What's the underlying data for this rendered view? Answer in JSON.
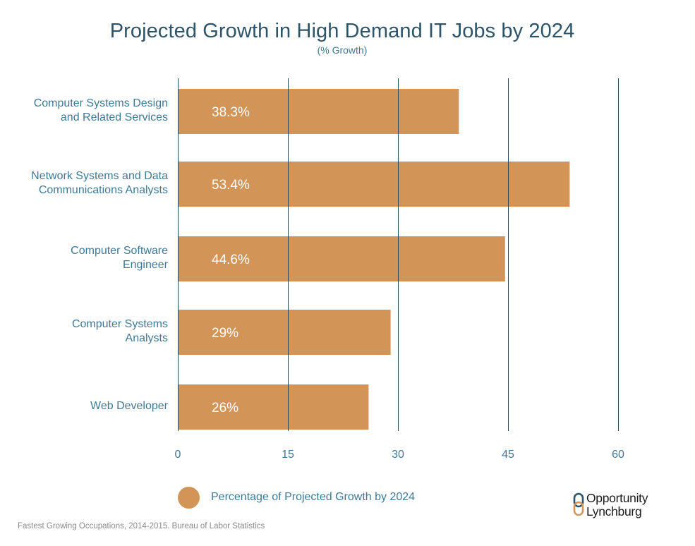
{
  "chart_data": {
    "type": "bar",
    "orientation": "horizontal",
    "title": "Projected Growth in High Demand IT Jobs by 2024",
    "subtitle": "(% Growth)",
    "categories": [
      "Computer Systems Design\nand Related Services",
      "Network Systems and Data\nCommunications Analysts",
      "Computer Software\nEngineer",
      "Computer Systems\nAnalysts",
      "Web Developer"
    ],
    "values": [
      38.3,
      53.4,
      44.6,
      29,
      26
    ],
    "data_labels": [
      "38.3%",
      "53.4%",
      "44.6%",
      "29%",
      "26%"
    ],
    "series": [
      {
        "name": "Percentage of Projected Growth by 2024",
        "values": [
          38.3,
          53.4,
          44.6,
          29,
          26
        ]
      }
    ],
    "xlim": [
      0,
      60
    ],
    "xticks": [
      "0",
      "15",
      "30",
      "45",
      "60"
    ],
    "grid": "vertical",
    "legend_position": "bottom",
    "colors": {
      "bar": "#d39457",
      "text": "#3e7a96",
      "title": "#2d5468",
      "grid": "#2f4858",
      "bar_label": "#ffffff"
    }
  },
  "legend": {
    "label": "Percentage of Projected Growth by 2024"
  },
  "source": "Fastest Growing Occupations, 2014-2015. Bureau of Labor Statistics",
  "logo": {
    "line1": "Opportunity",
    "line2": "Lynchburg"
  }
}
